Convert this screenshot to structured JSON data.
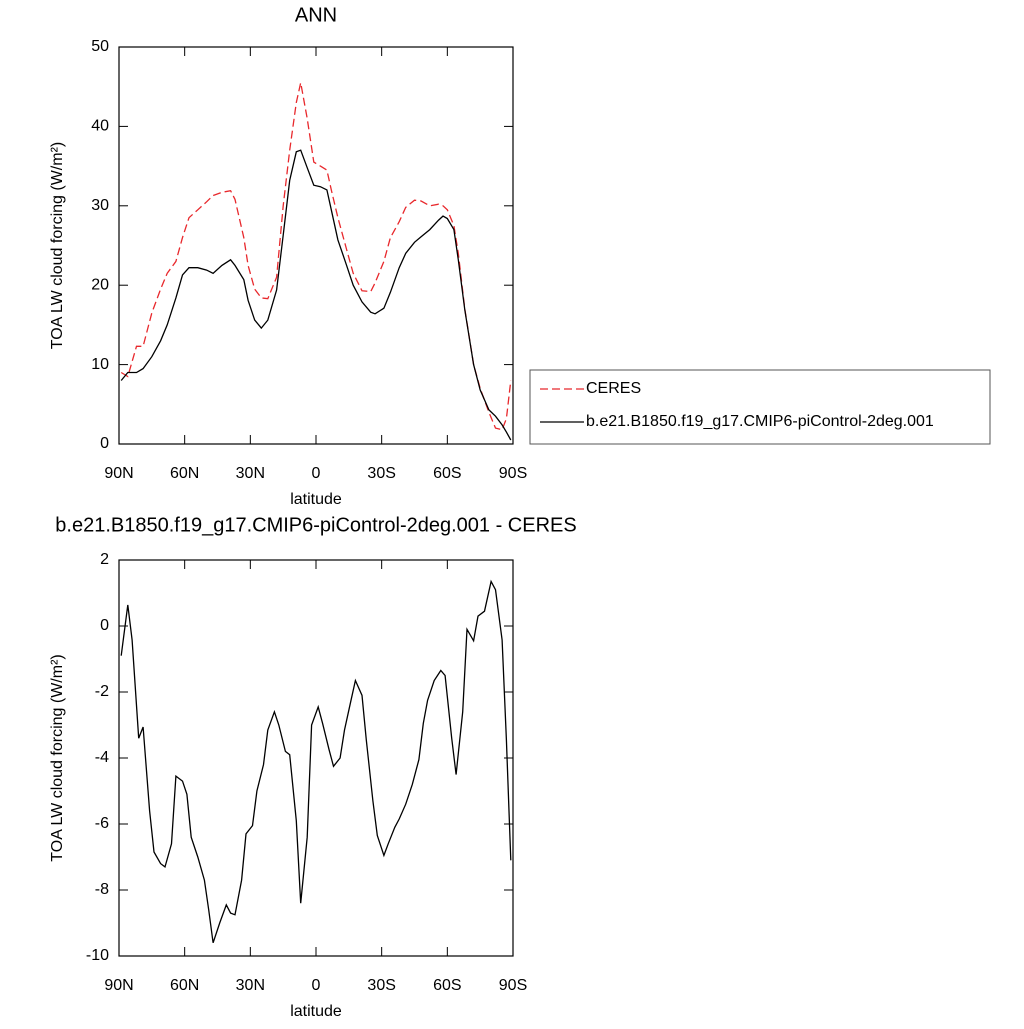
{
  "chart_data": [
    {
      "type": "line",
      "title": "ANN",
      "xlabel": "latitude",
      "ylabel": "TOA LW cloud forcing (W/m²)",
      "x": [
        89,
        86,
        82,
        79,
        75,
        71,
        68,
        64,
        61,
        58,
        54,
        50,
        47,
        43,
        39,
        37,
        33,
        31,
        28,
        25,
        22,
        18,
        15,
        12,
        9,
        7,
        4,
        1,
        -2,
        -5,
        -7,
        -10,
        -14,
        -17,
        -21,
        -25,
        -27,
        -31,
        -34,
        -38,
        -41,
        -45,
        -48,
        -52,
        -56,
        -58,
        -60,
        -63,
        -65,
        -68,
        -72,
        -75,
        -79,
        -82,
        -85,
        -87,
        -89
      ],
      "series": [
        {
          "name": "CERES",
          "color": "#e8282c",
          "dash": "dashed",
          "values": [
            9,
            8.5,
            12.3,
            12.3,
            16.5,
            19.5,
            21.5,
            23,
            26,
            28.5,
            29.5,
            30.5,
            31.3,
            31.7,
            31.9,
            30.8,
            26,
            22.5,
            19.5,
            18.4,
            18.3,
            21,
            30,
            37,
            43,
            45.5,
            41,
            35.5,
            35,
            34.5,
            32,
            28.5,
            24.5,
            21.5,
            19.3,
            19.2,
            20.3,
            23,
            26,
            28,
            29.8,
            30.7,
            30.6,
            30,
            30.2,
            30,
            29.5,
            27.5,
            24,
            17,
            10,
            7,
            4,
            2,
            1.8,
            3.2,
            8
          ]
        },
        {
          "name": "b.e21.B1850.f19_g17.CMIP6-piControl-2deg.001",
          "color": "#000000",
          "dash": "solid",
          "values": [
            8,
            9,
            9,
            9.5,
            11,
            13,
            15,
            18.4,
            21.3,
            22.2,
            22.2,
            21.9,
            21.5,
            22.5,
            23.2,
            22.5,
            20.7,
            18.1,
            15.6,
            14.6,
            15.6,
            19.4,
            26.3,
            33.2,
            36.8,
            37,
            34.8,
            32.6,
            32.4,
            32,
            29.5,
            25.7,
            22.5,
            20,
            17.9,
            16.6,
            16.4,
            17.1,
            19.1,
            22.2,
            24,
            25.4,
            26.1,
            27,
            28.2,
            28.7,
            28.4,
            27,
            23.2,
            16.9,
            10,
            6.8,
            4.3,
            3.5,
            2.4,
            1.5,
            0.5
          ]
        }
      ],
      "xlim": [
        90,
        -90
      ],
      "xticks": [
        {
          "value": 90,
          "label": "90N"
        },
        {
          "value": 60,
          "label": "60N"
        },
        {
          "value": 30,
          "label": "30N"
        },
        0,
        {
          "value": -30,
          "label": "30S"
        },
        {
          "value": -60,
          "label": "60S"
        },
        {
          "value": -90,
          "label": "90S"
        }
      ],
      "ylim": [
        0,
        50
      ],
      "yticks": [
        0,
        10,
        20,
        30,
        40,
        50
      ],
      "legend": "right",
      "grid": false
    },
    {
      "type": "line",
      "title": "b.e21.B1850.f19_g17.CMIP6-piControl-2deg.001 - CERES",
      "xlabel": "latitude",
      "ylabel": "TOA LW cloud forcing (W/m²)",
      "x": [
        89,
        86,
        84,
        81,
        79,
        76,
        74,
        71,
        69,
        66,
        64,
        61,
        59,
        57,
        54,
        51,
        49,
        47,
        44,
        41,
        39,
        37,
        34,
        32,
        29,
        27,
        24,
        22,
        19,
        17,
        14,
        12,
        9,
        7,
        4,
        2,
        -1,
        -3,
        -6,
        -8,
        -11,
        -13,
        -16,
        -18,
        -21,
        -23,
        -26,
        -28,
        -31,
        -33,
        -36,
        -38,
        -41,
        -44,
        -47,
        -49,
        -51,
        -54,
        -57,
        -59,
        -62,
        -64,
        -67,
        -69,
        -72,
        -74,
        -77,
        -80,
        -82,
        -85,
        -87,
        -89
      ],
      "series": [
        {
          "color": "#000000",
          "dash": "solid",
          "values": [
            -0.9,
            0.64,
            -0.42,
            -3.4,
            -3.06,
            -5.6,
            -6.85,
            -7.2,
            -7.3,
            -6.6,
            -4.55,
            -4.7,
            -5.1,
            -6.4,
            -7,
            -7.7,
            -8.6,
            -9.6,
            -9,
            -8.45,
            -8.7,
            -8.75,
            -7.7,
            -6.3,
            -6.05,
            -5,
            -4.2,
            -3.15,
            -2.6,
            -3,
            -3.8,
            -3.9,
            -5.9,
            -8.4,
            -6.4,
            -3,
            -2.45,
            -2.95,
            -3.75,
            -4.25,
            -4,
            -3.15,
            -2.25,
            -1.65,
            -2.1,
            -3.45,
            -5.3,
            -6.35,
            -6.95,
            -6.6,
            -6.1,
            -5.85,
            -5.4,
            -4.8,
            -4.05,
            -2.95,
            -2.25,
            -1.65,
            -1.35,
            -1.5,
            -3.4,
            -4.5,
            -2.6,
            -0.1,
            -0.45,
            0.3,
            0.45,
            1.35,
            1.1,
            -0.42,
            -3.45,
            -7.1
          ]
        }
      ],
      "xlim": [
        90,
        -90
      ],
      "xticks": [
        {
          "value": 90,
          "label": "90N"
        },
        {
          "value": 60,
          "label": "60N"
        },
        {
          "value": 30,
          "label": "30N"
        },
        0,
        {
          "value": -30,
          "label": "30S"
        },
        {
          "value": -60,
          "label": "60S"
        },
        {
          "value": -90,
          "label": "90S"
        }
      ],
      "ylim": [
        -10,
        2
      ],
      "yticks": [
        -10,
        -8,
        -6,
        -4,
        -2,
        0,
        2
      ],
      "grid": false
    }
  ]
}
